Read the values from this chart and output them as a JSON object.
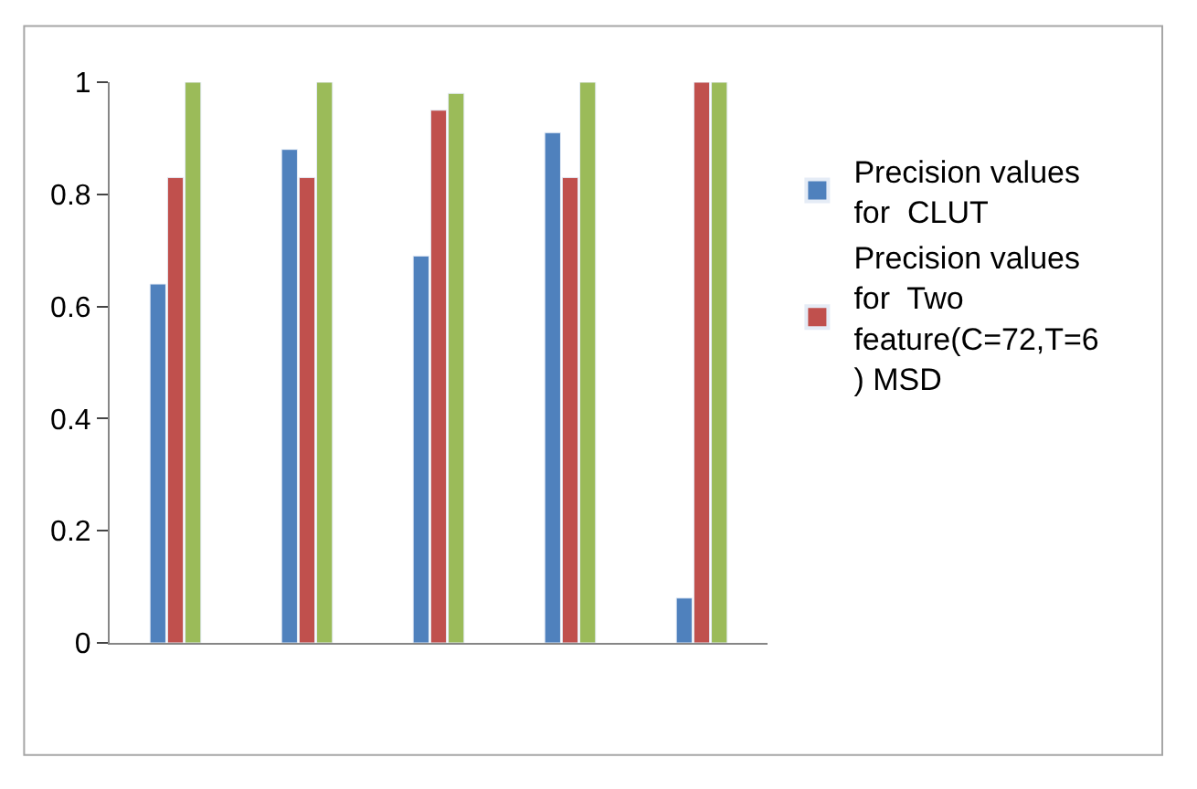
{
  "chart_data": {
    "type": "bar",
    "categories": [
      null,
      null,
      null,
      null,
      null
    ],
    "series": [
      {
        "name": "Precision values for  CLUT",
        "color": "#4f81bd",
        "values": [
          0.64,
          0.88,
          0.69,
          0.91,
          0.08
        ]
      },
      {
        "name": "Precision values for  Two feature(C=72,T=6 ) MSD",
        "color": "#c0504d",
        "values": [
          0.83,
          0.83,
          0.95,
          0.83,
          1
        ]
      },
      {
        "color": "#9bbb59",
        "values": [
          1,
          1,
          0.98,
          1,
          1
        ]
      }
    ],
    "ylim": [
      0,
      1
    ],
    "yticks": [
      0,
      0.2,
      0.4,
      0.6,
      0.8,
      1
    ],
    "legend": "right"
  }
}
